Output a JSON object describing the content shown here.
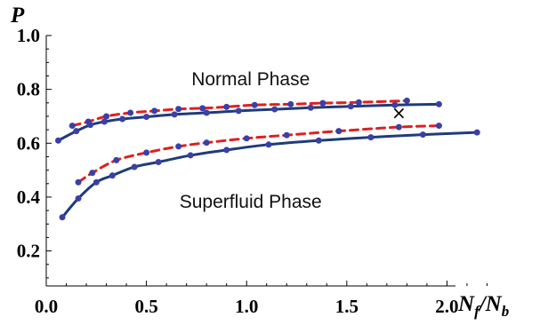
{
  "chart_data": {
    "type": "line",
    "title": "",
    "xlabel": {
      "main": "N",
      "sub1": "f",
      "sep": "/N",
      "sub2": "b"
    },
    "ylabel": "P",
    "xlim": [
      0,
      2.3
    ],
    "ylim": [
      0.07,
      1.0
    ],
    "x_ticks": [
      0.0,
      0.5,
      1.0,
      1.5,
      2.0
    ],
    "x_tick_labels": [
      "0.0",
      "0.5",
      "1.0",
      "1.5",
      "2.0"
    ],
    "y_ticks": [
      0.2,
      0.4,
      0.6,
      0.8,
      1.0
    ],
    "y_tick_labels": [
      "0.2",
      "0.4",
      "0.6",
      "0.8",
      "1.0"
    ],
    "grid": false,
    "annotations": [
      {
        "text": "Normal Phase",
        "x": 1.02,
        "y": 0.815
      },
      {
        "text": "Superfluid Phase",
        "x": 1.02,
        "y": 0.36
      },
      {
        "text": "×",
        "x": 1.76,
        "y": 0.69
      }
    ],
    "series": [
      {
        "style": "solid",
        "color": "#1f3c7a",
        "marker_color": "#3b3fa6",
        "x": [
          0.06,
          0.15,
          0.22,
          0.29,
          0.38,
          0.5,
          0.64,
          0.8,
          0.96,
          1.14,
          1.32,
          1.52,
          1.74,
          1.96
        ],
        "y": [
          0.61,
          0.645,
          0.668,
          0.68,
          0.69,
          0.698,
          0.707,
          0.713,
          0.72,
          0.726,
          0.732,
          0.737,
          0.742,
          0.745
        ]
      },
      {
        "style": "dashed",
        "color": "#e02020",
        "marker_color": "#3b3fa6",
        "x": [
          0.13,
          0.21,
          0.3,
          0.42,
          0.54,
          0.66,
          0.78,
          0.9,
          1.04,
          1.22,
          1.38,
          1.56,
          1.8
        ],
        "y": [
          0.665,
          0.68,
          0.7,
          0.713,
          0.72,
          0.727,
          0.73,
          0.735,
          0.742,
          0.745,
          0.749,
          0.752,
          0.758
        ]
      },
      {
        "style": "solid",
        "color": "#1f3c7a",
        "marker_color": "#3b3fa6",
        "x": [
          0.08,
          0.16,
          0.25,
          0.33,
          0.44,
          0.56,
          0.72,
          0.9,
          1.11,
          1.36,
          1.62,
          1.88,
          2.15
        ],
        "y": [
          0.325,
          0.395,
          0.455,
          0.48,
          0.512,
          0.53,
          0.555,
          0.575,
          0.595,
          0.61,
          0.622,
          0.632,
          0.64
        ]
      },
      {
        "style": "dashed",
        "color": "#e02020",
        "marker_color": "#3b3fa6",
        "x": [
          0.16,
          0.23,
          0.35,
          0.5,
          0.66,
          0.8,
          1.0,
          1.2,
          1.46,
          1.76,
          1.96
        ],
        "y": [
          0.455,
          0.49,
          0.537,
          0.565,
          0.588,
          0.602,
          0.618,
          0.63,
          0.645,
          0.66,
          0.665
        ]
      }
    ]
  }
}
